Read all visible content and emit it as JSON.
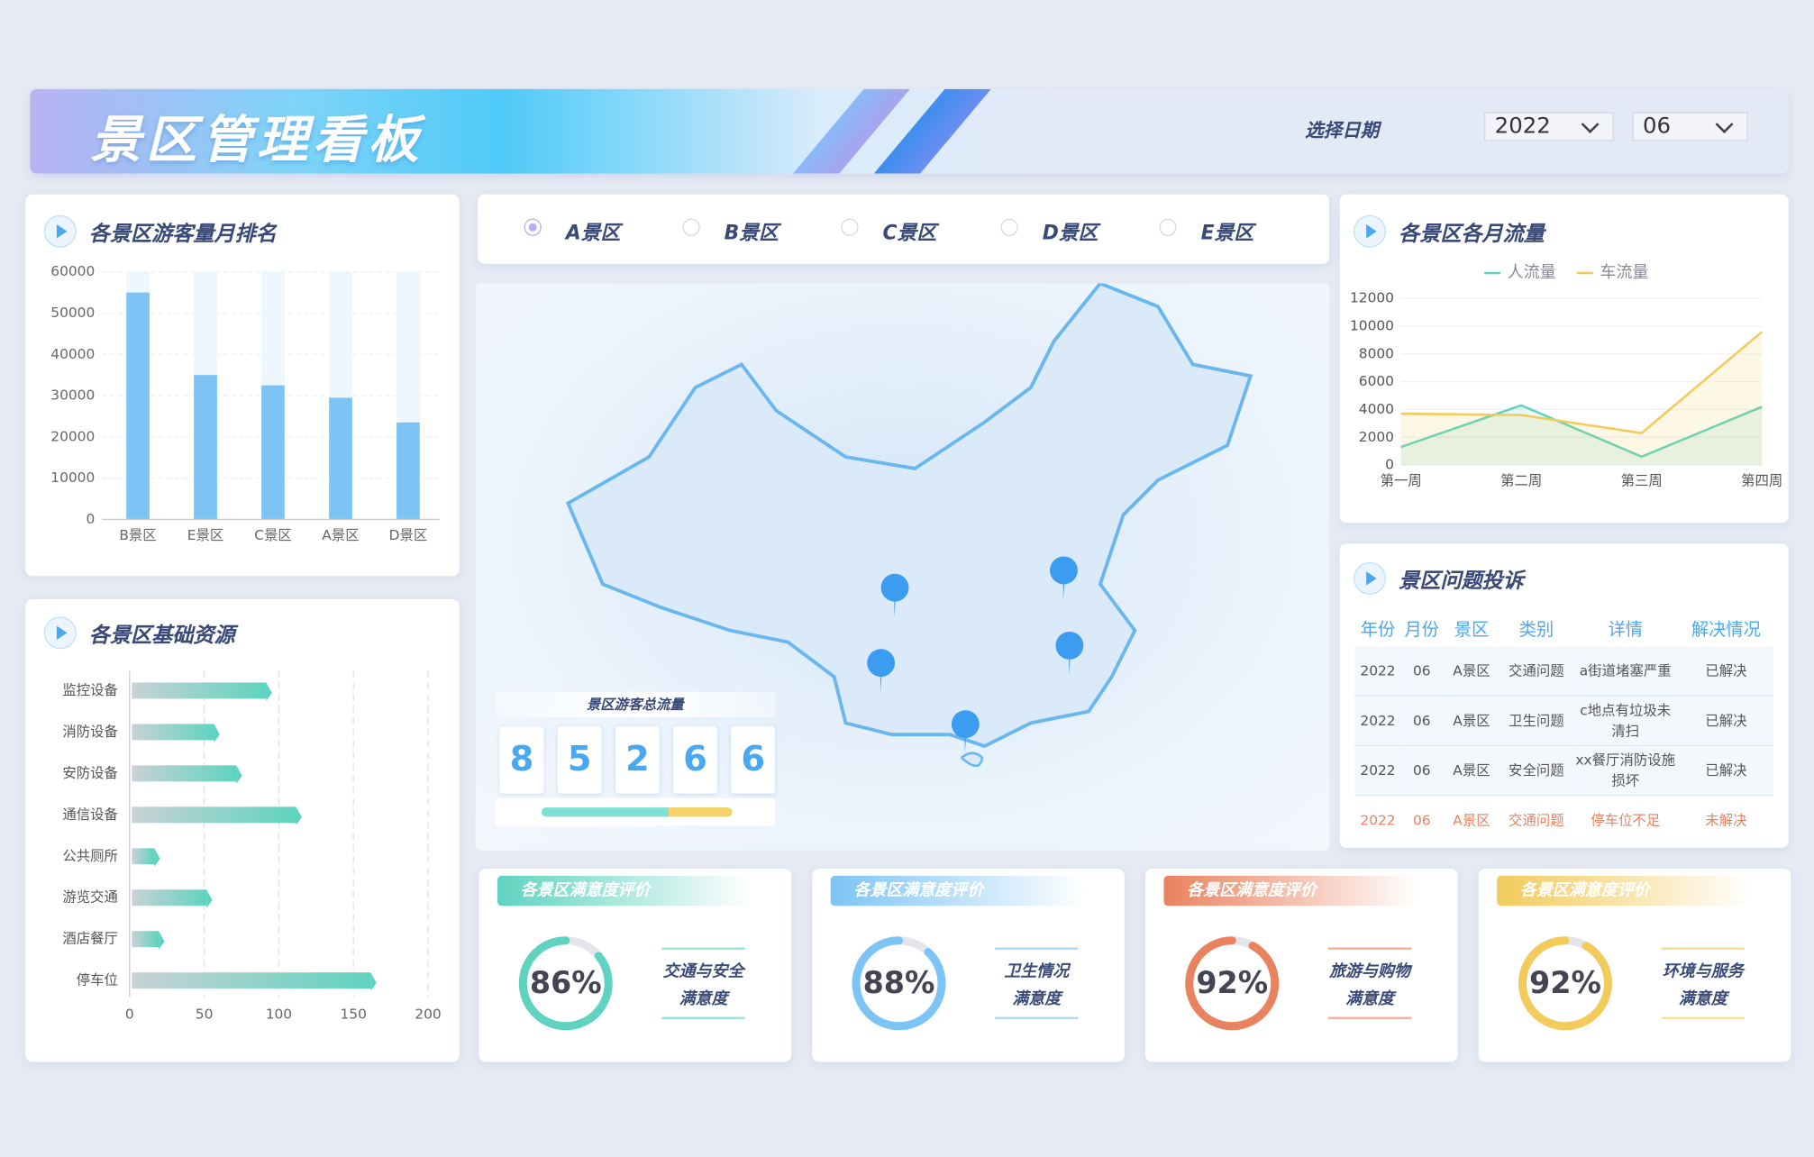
{
  "header": {
    "title": "景区管理看板",
    "date_label": "选择日期",
    "year": "2022",
    "month": "06"
  },
  "tabs": [
    "A景区",
    "B景区",
    "C景区",
    "D景区",
    "E景区"
  ],
  "total_flow": {
    "title": "景区游客总流量",
    "digits": [
      "8",
      "5",
      "2",
      "6",
      "6"
    ]
  },
  "table": {
    "title": "景区问题投诉",
    "columns": [
      "年份",
      "月份",
      "景区",
      "类别",
      "详情",
      "解决情况"
    ],
    "rows": [
      [
        "2022",
        "06",
        "A景区",
        "交通问题",
        "a街道堵塞严重",
        "已解决"
      ],
      [
        "2022",
        "06",
        "A景区",
        "卫生问题",
        "c地点有垃圾未清扫",
        "已解决"
      ],
      [
        "2022",
        "06",
        "A景区",
        "安全问题",
        "xx餐厅消防设施损坏",
        "已解决"
      ],
      [
        "2022",
        "06",
        "A景区",
        "交通问题",
        "停车位不足",
        "未解决"
      ]
    ]
  },
  "chart_data": [
    {
      "type": "bar",
      "title": "各景区游客量月排名",
      "categories": [
        "B景区",
        "E景区",
        "C景区",
        "A景区",
        "D景区"
      ],
      "values": [
        55000,
        35000,
        32500,
        29500,
        23500
      ],
      "color": "#7cc4f4",
      "ylim": [
        0,
        60000
      ],
      "yticks": [
        0,
        10000,
        20000,
        30000,
        40000,
        50000,
        60000
      ],
      "grid": true
    },
    {
      "type": "hbar",
      "title": "各景区基础资源",
      "categories": [
        "监控设备",
        "消防设备",
        "安防设备",
        "通信设备",
        "公共厕所",
        "游览交通",
        "酒店餐厅",
        "停车位"
      ],
      "values": [
        90,
        55,
        70,
        110,
        15,
        50,
        18,
        160
      ],
      "color": "#5fd3bf",
      "xlim": [
        0,
        200
      ],
      "xticks": [
        0,
        50,
        100,
        150,
        200
      ],
      "grid": true
    },
    {
      "type": "line",
      "title": "各景区各月流量",
      "categories": [
        "第一周",
        "第二周",
        "第三周",
        "第四周"
      ],
      "series": [
        {
          "name": "人流量",
          "color": "#5fd3bf",
          "values": [
            1300,
            4300,
            600,
            4200
          ]
        },
        {
          "name": "车流量",
          "color": "#f2cb5a",
          "values": [
            3700,
            3600,
            2300,
            9600
          ]
        }
      ],
      "ylim": [
        0,
        12000
      ],
      "yticks": [
        0,
        2000,
        4000,
        6000,
        8000,
        10000,
        12000
      ]
    },
    {
      "type": "gauge",
      "title": "各景区满意度评价",
      "values": [
        86
      ],
      "value_labels": [
        "86%"
      ],
      "label_lines": [
        "交通与安全",
        "满意度"
      ],
      "color": "#5fd3bf",
      "ylim": [
        0,
        100
      ]
    },
    {
      "type": "gauge",
      "title": "各景区满意度评价",
      "values": [
        88
      ],
      "value_labels": [
        "88%"
      ],
      "label_lines": [
        "卫生情况",
        "满意度"
      ],
      "color": "#7cc4f4",
      "ylim": [
        0,
        100
      ]
    },
    {
      "type": "gauge",
      "title": "各景区满意度评价",
      "values": [
        92
      ],
      "value_labels": [
        "92%"
      ],
      "label_lines": [
        "旅游与购物",
        "满意度"
      ],
      "color": "#e9825f",
      "ylim": [
        0,
        100
      ]
    },
    {
      "type": "gauge",
      "title": "各景区满意度评价",
      "values": [
        92
      ],
      "value_labels": [
        "92%"
      ],
      "label_lines": [
        "环境与服务",
        "满意度"
      ],
      "color": "#f2cb5a",
      "ylim": [
        0,
        100
      ]
    }
  ]
}
